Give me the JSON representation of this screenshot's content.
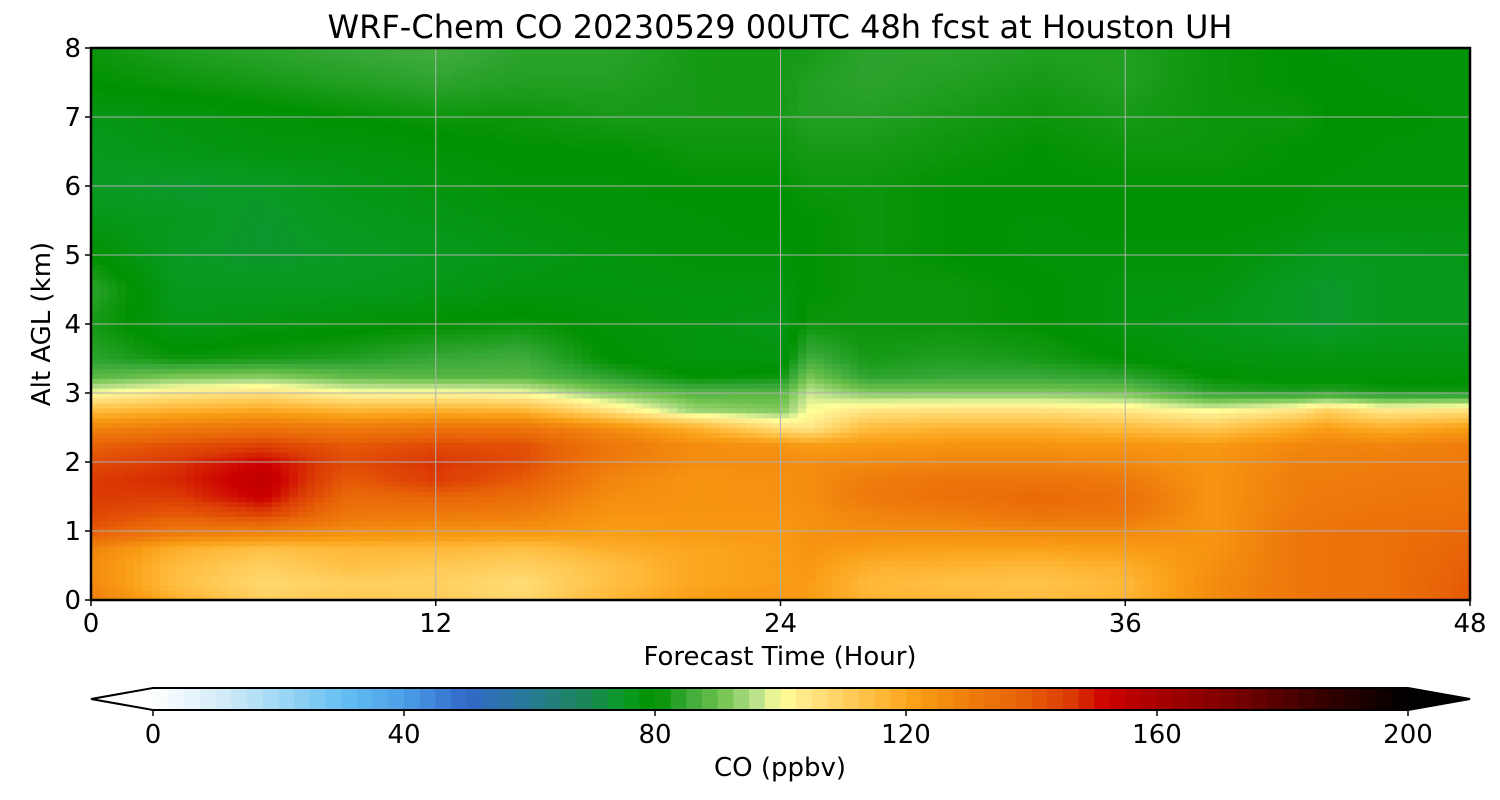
{
  "chart_data": {
    "type": "heatmap",
    "title": "WRF-Chem CO  20230529 00UTC 48h fcst at Houston UH",
    "xlabel": "Forecast Time (Hour)",
    "ylabel": "Alt AGL (km)",
    "xlim": [
      0,
      48
    ],
    "ylim": [
      0,
      8
    ],
    "x_ticks": [
      0,
      12,
      24,
      36,
      48
    ],
    "y_ticks": [
      0,
      1,
      2,
      3,
      4,
      5,
      6,
      7,
      8
    ],
    "grid": true,
    "z_label": "CO  (ppbv)",
    "z_range": [
      0,
      200
    ],
    "z_ticks": [
      0,
      40,
      80,
      120,
      160,
      200
    ],
    "x": [
      0,
      3,
      6,
      9,
      12,
      15,
      18,
      21,
      24,
      25,
      27,
      30,
      33,
      36,
      39,
      42,
      43,
      45,
      48
    ],
    "y": [
      0,
      0.25,
      0.5,
      0.75,
      1,
      1.25,
      1.5,
      1.75,
      2,
      2.25,
      2.5,
      2.75,
      3,
      3.25,
      3.5,
      4,
      4.5,
      5,
      5.5,
      6,
      6.5,
      7,
      7.5,
      8
    ],
    "z": [
      [
        130,
        118,
        110,
        112,
        111,
        108,
        116,
        122,
        124,
        122,
        117,
        116,
        115,
        117,
        126,
        132,
        133,
        134,
        140
      ],
      [
        127,
        114,
        108,
        110,
        110,
        107,
        114,
        120,
        122,
        122,
        116,
        114,
        113,
        116,
        126,
        132,
        133,
        134,
        140
      ],
      [
        126,
        115,
        110,
        114,
        112,
        110,
        114,
        120,
        122,
        123,
        118,
        117,
        116,
        118,
        125,
        132,
        133,
        134,
        139
      ],
      [
        128,
        118,
        114,
        116,
        116,
        114,
        118,
        120,
        122,
        124,
        122,
        121,
        121,
        122,
        124,
        132,
        133,
        134,
        138
      ],
      [
        140,
        132,
        130,
        126,
        125,
        124,
        122,
        123,
        123,
        125,
        126,
        126,
        127,
        127,
        124,
        132,
        133,
        134,
        136
      ],
      [
        144,
        140,
        145,
        132,
        131,
        130,
        124,
        124,
        124,
        125,
        128,
        130,
        133,
        132,
        124,
        131,
        132,
        133,
        134
      ],
      [
        146,
        146,
        153,
        136,
        138,
        135,
        126,
        124,
        125,
        126,
        131,
        134,
        136,
        134,
        124,
        130,
        131,
        132,
        133
      ],
      [
        146,
        148,
        155,
        140,
        146,
        140,
        128,
        124,
        125,
        126,
        130,
        133,
        133,
        131,
        124,
        130,
        130,
        131,
        132
      ],
      [
        143,
        147,
        152,
        143,
        147,
        143,
        131,
        126,
        126,
        126,
        127,
        128,
        128,
        127,
        124,
        129,
        129,
        130,
        131
      ],
      [
        138,
        142,
        145,
        140,
        143,
        142,
        132,
        126,
        124,
        122,
        123,
        124,
        124,
        124,
        123,
        127,
        128,
        128,
        130
      ],
      [
        128,
        131,
        133,
        131,
        133,
        133,
        126,
        118,
        106,
        104,
        115,
        117,
        117,
        115,
        112,
        119,
        122,
        118,
        122
      ],
      [
        115,
        118,
        120,
        117,
        118,
        117,
        106,
        94,
        92,
        100,
        105,
        106,
        106,
        104,
        100,
        105,
        110,
        104,
        106
      ],
      [
        100,
        104,
        106,
        101,
        101,
        100,
        92,
        88,
        88,
        97,
        92,
        92,
        92,
        91,
        84,
        83,
        84,
        82,
        82
      ],
      [
        88,
        91,
        92,
        89,
        88,
        88,
        84,
        80,
        81,
        91,
        84,
        85,
        85,
        84,
        80,
        79,
        79,
        79,
        79
      ],
      [
        84,
        81,
        82,
        83,
        85,
        86,
        80,
        78,
        78,
        86,
        82,
        83,
        82,
        80,
        78,
        78,
        78,
        78,
        78
      ],
      [
        82,
        77,
        78,
        79,
        80,
        81,
        79,
        78,
        77,
        81,
        81,
        81,
        80,
        78,
        77,
        75,
        74,
        76,
        76
      ],
      [
        84,
        76,
        76,
        76,
        77,
        78,
        78,
        78,
        78,
        80,
        81,
        81,
        80,
        78,
        78,
        75,
        74,
        76,
        76
      ],
      [
        80,
        75,
        74,
        75,
        76,
        77,
        78,
        79,
        79,
        80,
        81,
        80,
        79,
        79,
        79,
        77,
        76,
        76,
        77
      ],
      [
        77,
        76,
        74,
        76,
        77,
        78,
        79,
        79,
        80,
        80,
        81,
        80,
        79,
        80,
        80,
        79,
        78,
        78,
        78
      ],
      [
        75,
        74,
        75,
        77,
        78,
        79,
        79,
        80,
        80,
        81,
        81,
        80,
        80,
        80,
        80,
        80,
        79,
        79,
        79
      ],
      [
        76,
        77,
        78,
        78,
        79,
        80,
        80,
        81,
        81,
        82,
        82,
        81,
        80,
        81,
        81,
        80,
        80,
        79,
        79
      ],
      [
        77,
        78,
        79,
        80,
        81,
        81,
        82,
        82,
        82,
        83,
        83,
        82,
        81,
        82,
        81,
        81,
        80,
        80,
        79
      ],
      [
        80,
        81,
        82,
        83,
        84,
        83,
        83,
        82,
        82,
        83,
        84,
        83,
        82,
        83,
        81,
        80,
        80,
        79,
        79
      ],
      [
        81,
        83,
        84,
        85,
        86,
        84,
        84,
        82,
        82,
        82,
        84,
        84,
        83,
        83,
        81,
        80,
        79,
        79,
        79
      ]
    ],
    "colormap_stops": [
      [
        0,
        "#ffffff"
      ],
      [
        10,
        "#d8eef9"
      ],
      [
        20,
        "#a0d8f4"
      ],
      [
        30,
        "#66c0f2"
      ],
      [
        40,
        "#4a9fe8"
      ],
      [
        50,
        "#3268c8"
      ],
      [
        60,
        "#277a96"
      ],
      [
        70,
        "#1a8850"
      ],
      [
        75,
        "#0a9a24"
      ],
      [
        80,
        "#009100"
      ],
      [
        85,
        "#38a838"
      ],
      [
        90,
        "#6ac04a"
      ],
      [
        96,
        "#b8e08a"
      ],
      [
        100,
        "#ffff99"
      ],
      [
        104,
        "#ffe88a"
      ],
      [
        110,
        "#ffd060"
      ],
      [
        116,
        "#ffb838"
      ],
      [
        122,
        "#f99d14"
      ],
      [
        130,
        "#ef7d0c"
      ],
      [
        138,
        "#e86408"
      ],
      [
        146,
        "#dc3c04"
      ],
      [
        152,
        "#cc0000"
      ],
      [
        162,
        "#a00000"
      ],
      [
        172,
        "#7a0000"
      ],
      [
        182,
        "#480000"
      ],
      [
        192,
        "#200000"
      ],
      [
        200,
        "#000000"
      ]
    ]
  }
}
